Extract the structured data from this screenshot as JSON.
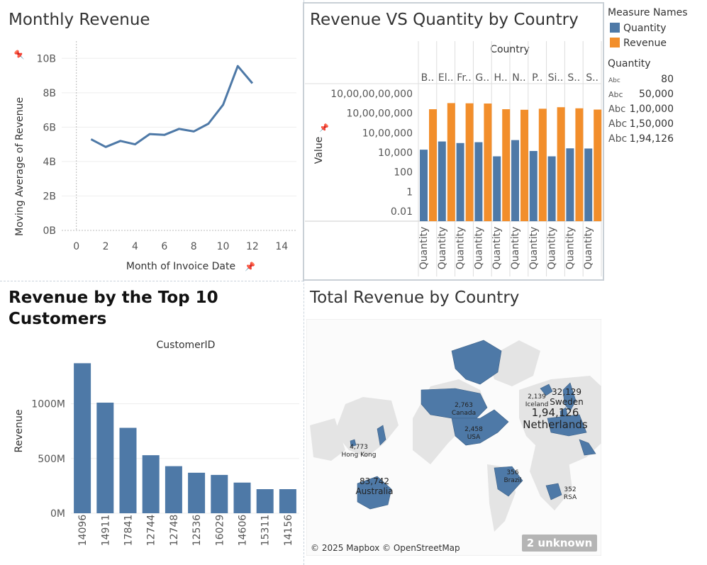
{
  "charts": {
    "monthly": {
      "title": "Monthly Revenue",
      "xlabel": "Month of Invoice Date",
      "ylabel": "Moving Average of Revenue",
      "xticks": [
        "0",
        "2",
        "4",
        "6",
        "8",
        "10",
        "12",
        "14"
      ],
      "yticks": [
        "0B",
        "2B",
        "4B",
        "6B",
        "8B",
        "10B"
      ]
    },
    "revqty": {
      "title": "Revenue VS Quantity by Country",
      "column_header": "Country",
      "ylabel": "Value",
      "yticks": [
        "0.01",
        "1",
        "100",
        "10,000",
        "10,00,000",
        "10,00,00,000",
        "10,00,00,00,000"
      ],
      "countries": [
        "B..",
        "El..",
        "Fr..",
        "G..",
        "H..",
        "N..",
        "P..",
        "Si..",
        "S..",
        "S.."
      ],
      "measure_label": "Quantity"
    },
    "top10": {
      "title": "Revenue by the Top 10 Customers",
      "header": "CustomerID",
      "ylabel": "Revenue",
      "yticks": [
        "0M",
        "500M",
        "1000M"
      ]
    },
    "map": {
      "title": "Total Revenue by Country",
      "credit": "© 2025 Mapbox © OpenStreetMap",
      "unknown_badge": "2 unknown",
      "labels": [
        {
          "value": "2,763",
          "name": "Canada"
        },
        {
          "value": "2,458",
          "name": "USA"
        },
        {
          "value": "4,773",
          "name": "Hong Kong"
        },
        {
          "value": "83,742",
          "name": "Australia"
        },
        {
          "value": "356",
          "name": "Brazil"
        },
        {
          "value": "352",
          "name": "RSA"
        },
        {
          "value": "2,139",
          "name": "Iceland"
        },
        {
          "value": "32,129",
          "name": "Sweden"
        },
        {
          "value": "1,94,126",
          "name": "Netherlands"
        }
      ]
    }
  },
  "legend": {
    "measure_names_title": "Measure Names",
    "measures": [
      {
        "name": "Quantity",
        "color": "#4e79a7"
      },
      {
        "name": "Revenue",
        "color": "#f28e2b"
      }
    ],
    "size_title": "Quantity",
    "size_items": [
      {
        "abc": "Abc",
        "value": "80"
      },
      {
        "abc": "Abc",
        "value": "50,000"
      },
      {
        "abc": "Abc",
        "value": "1,00,000"
      },
      {
        "abc": "Abc",
        "value": "1,50,000"
      },
      {
        "abc": "Abc",
        "value": "1,94,126"
      }
    ]
  },
  "chart_data": [
    {
      "type": "line",
      "title": "Monthly Revenue",
      "xlabel": "Month of Invoice Date",
      "ylabel": "Moving Average of Revenue",
      "x": [
        1,
        2,
        3,
        4,
        5,
        6,
        7,
        8,
        9,
        10,
        11,
        12
      ],
      "values": [
        5.3,
        4.85,
        5.2,
        5.0,
        5.6,
        5.55,
        5.9,
        5.75,
        6.2,
        7.3,
        9.55,
        8.55
      ],
      "unit": "B",
      "xlim": [
        -1,
        15
      ],
      "ylim": [
        0,
        11
      ],
      "color": "#4e79a7"
    },
    {
      "type": "bar",
      "title": "Revenue VS Quantity by Country",
      "ylabel": "Value",
      "scale": "log",
      "ylim": [
        0.001,
        100000000000
      ],
      "categories": [
        "B..",
        "El..",
        "Fr..",
        "G..",
        "H..",
        "N..",
        "P..",
        "Si..",
        "S..",
        "S.."
      ],
      "series": [
        {
          "name": "Quantity",
          "values": [
            19000,
            130000,
            90000,
            110000,
            4000,
            180000,
            14000,
            4000,
            26000,
            25000
          ]
        },
        {
          "name": "Revenue",
          "values": [
            250000000,
            1050000000,
            1000000000,
            950000000,
            250000000,
            220000000,
            280000000,
            400000000,
            310000000,
            230000000
          ]
        }
      ]
    },
    {
      "type": "bar",
      "title": "Revenue by the Top 10 Customers",
      "xlabel": "CustomerID",
      "ylabel": "Revenue",
      "unit": "M",
      "categories": [
        "14096",
        "14911",
        "17841",
        "12744",
        "12748",
        "12536",
        "16029",
        "14606",
        "15311",
        "14156"
      ],
      "values": [
        1370,
        1010,
        780,
        530,
        430,
        370,
        350,
        280,
        220,
        220
      ],
      "ylim": [
        0,
        1450
      ],
      "color": "#4e79a7"
    }
  ]
}
